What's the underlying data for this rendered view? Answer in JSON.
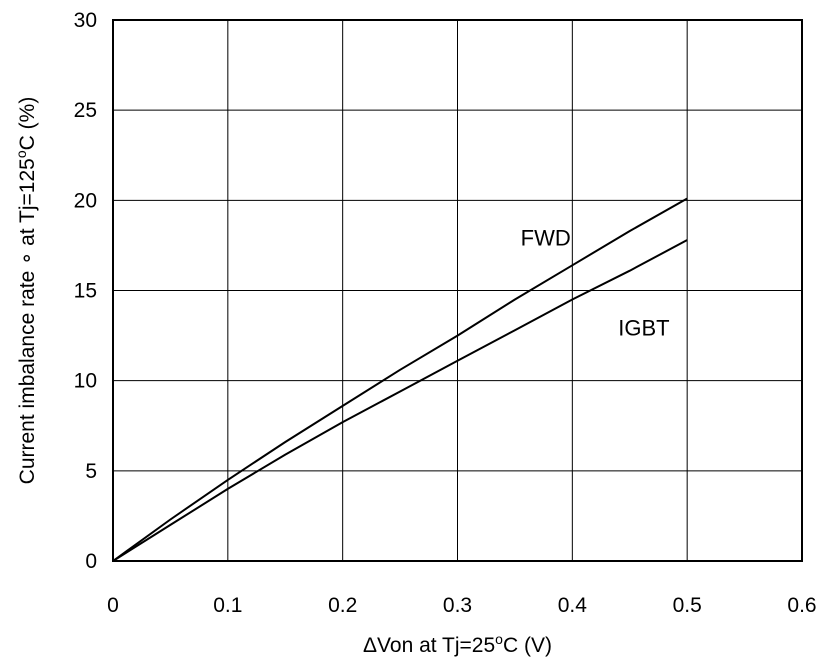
{
  "chart_data": {
    "type": "line",
    "title": "",
    "xlabel_parts": {
      "pre": "ΔVon at Tj=25",
      "sup": "o",
      "post": "C (V)"
    },
    "ylabel_parts": {
      "pre": "Current imbalance rate  ∘  at Tj=125",
      "sup": "o",
      "post": "C (%)"
    },
    "xlim": [
      0,
      0.6
    ],
    "ylim": [
      0,
      30
    ],
    "x_ticks": [
      {
        "value": 0,
        "label": "0"
      },
      {
        "value": 0.1,
        "label": "0.1"
      },
      {
        "value": 0.2,
        "label": "0.2"
      },
      {
        "value": 0.3,
        "label": "0.3"
      },
      {
        "value": 0.4,
        "label": "0.4"
      },
      {
        "value": 0.5,
        "label": "0.5"
      },
      {
        "value": 0.6,
        "label": "0.6"
      }
    ],
    "y_ticks": [
      {
        "value": 0,
        "label": "0"
      },
      {
        "value": 5,
        "label": "5"
      },
      {
        "value": 10,
        "label": "10"
      },
      {
        "value": 15,
        "label": "15"
      },
      {
        "value": 20,
        "label": "20"
      },
      {
        "value": 25,
        "label": "25"
      },
      {
        "value": 30,
        "label": "30"
      }
    ],
    "grid": true,
    "legend": "none",
    "series": [
      {
        "name": "FWD",
        "color": "#000000",
        "x": [
          0,
          0.05,
          0.1,
          0.15,
          0.2,
          0.25,
          0.3,
          0.35,
          0.4,
          0.45,
          0.5
        ],
        "y": [
          0,
          2.3,
          4.5,
          6.6,
          8.6,
          10.6,
          12.5,
          14.5,
          16.4,
          18.3,
          20.1
        ]
      },
      {
        "name": "IGBT",
        "color": "#000000",
        "x": [
          0,
          0.05,
          0.1,
          0.15,
          0.2,
          0.25,
          0.3,
          0.35,
          0.4,
          0.45,
          0.5
        ],
        "y": [
          0,
          2.0,
          4.0,
          5.9,
          7.7,
          9.4,
          11.1,
          12.8,
          14.5,
          16.1,
          17.8
        ]
      }
    ],
    "annotations": [
      {
        "text": "FWD",
        "x": 0.355,
        "y": 17.5
      },
      {
        "text": "IGBT",
        "x": 0.44,
        "y": 12.5
      }
    ]
  }
}
